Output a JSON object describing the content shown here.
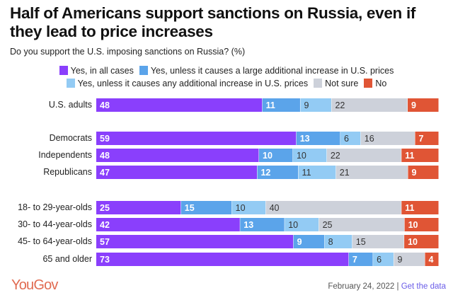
{
  "chart_data": {
    "type": "bar",
    "orientation": "horizontal",
    "stacked": true,
    "title": "Half of Americans support sanctions on Russia, even if they lead to price increases",
    "subtitle": "Do you support the U.S. imposing sanctions on Russia? (%)",
    "legend_position": "top-center",
    "categories": [
      "U.S. adults",
      "Democrats",
      "Independents",
      "Republicans",
      "18- to 29-year-olds",
      "30- to 44-year-olds",
      "45- to 64-year-olds",
      "65 and older"
    ],
    "groups": [
      [
        0
      ],
      [
        1,
        2,
        3
      ],
      [
        4,
        5,
        6,
        7
      ]
    ],
    "series": [
      {
        "name": "Yes, in all cases",
        "color": "#8a3ffc",
        "label_color": "#ffffff",
        "label_bold": true,
        "values": [
          48,
          59,
          48,
          47,
          25,
          42,
          57,
          73
        ]
      },
      {
        "name": "Yes, unless it causes a large additional increase in U.S. prices",
        "color": "#5ba4ea",
        "label_color": "#ffffff",
        "label_bold": true,
        "values": [
          11,
          13,
          10,
          12,
          15,
          13,
          9,
          7
        ]
      },
      {
        "name": "Yes, unless it causes any additional increase in U.S. prices",
        "color": "#93cbf4",
        "label_color": "#333333",
        "label_bold": false,
        "values": [
          9,
          6,
          10,
          11,
          10,
          10,
          8,
          6
        ]
      },
      {
        "name": "Not sure",
        "color": "#cdd1da",
        "label_color": "#333333",
        "label_bold": false,
        "values": [
          22,
          16,
          22,
          21,
          40,
          25,
          15,
          9
        ]
      },
      {
        "name": "No",
        "color": "#e05535",
        "label_color": "#ffffff",
        "label_bold": true,
        "values": [
          9,
          7,
          11,
          9,
          11,
          10,
          10,
          4
        ]
      }
    ],
    "xlim": [
      0,
      100
    ],
    "grid": false
  },
  "legend": {
    "line1": [
      0,
      1
    ],
    "line2": [
      2,
      3,
      4
    ]
  },
  "footer": {
    "brand": "YouGov",
    "date": "February 24, 2022",
    "separator": " | ",
    "link": "Get the data"
  }
}
